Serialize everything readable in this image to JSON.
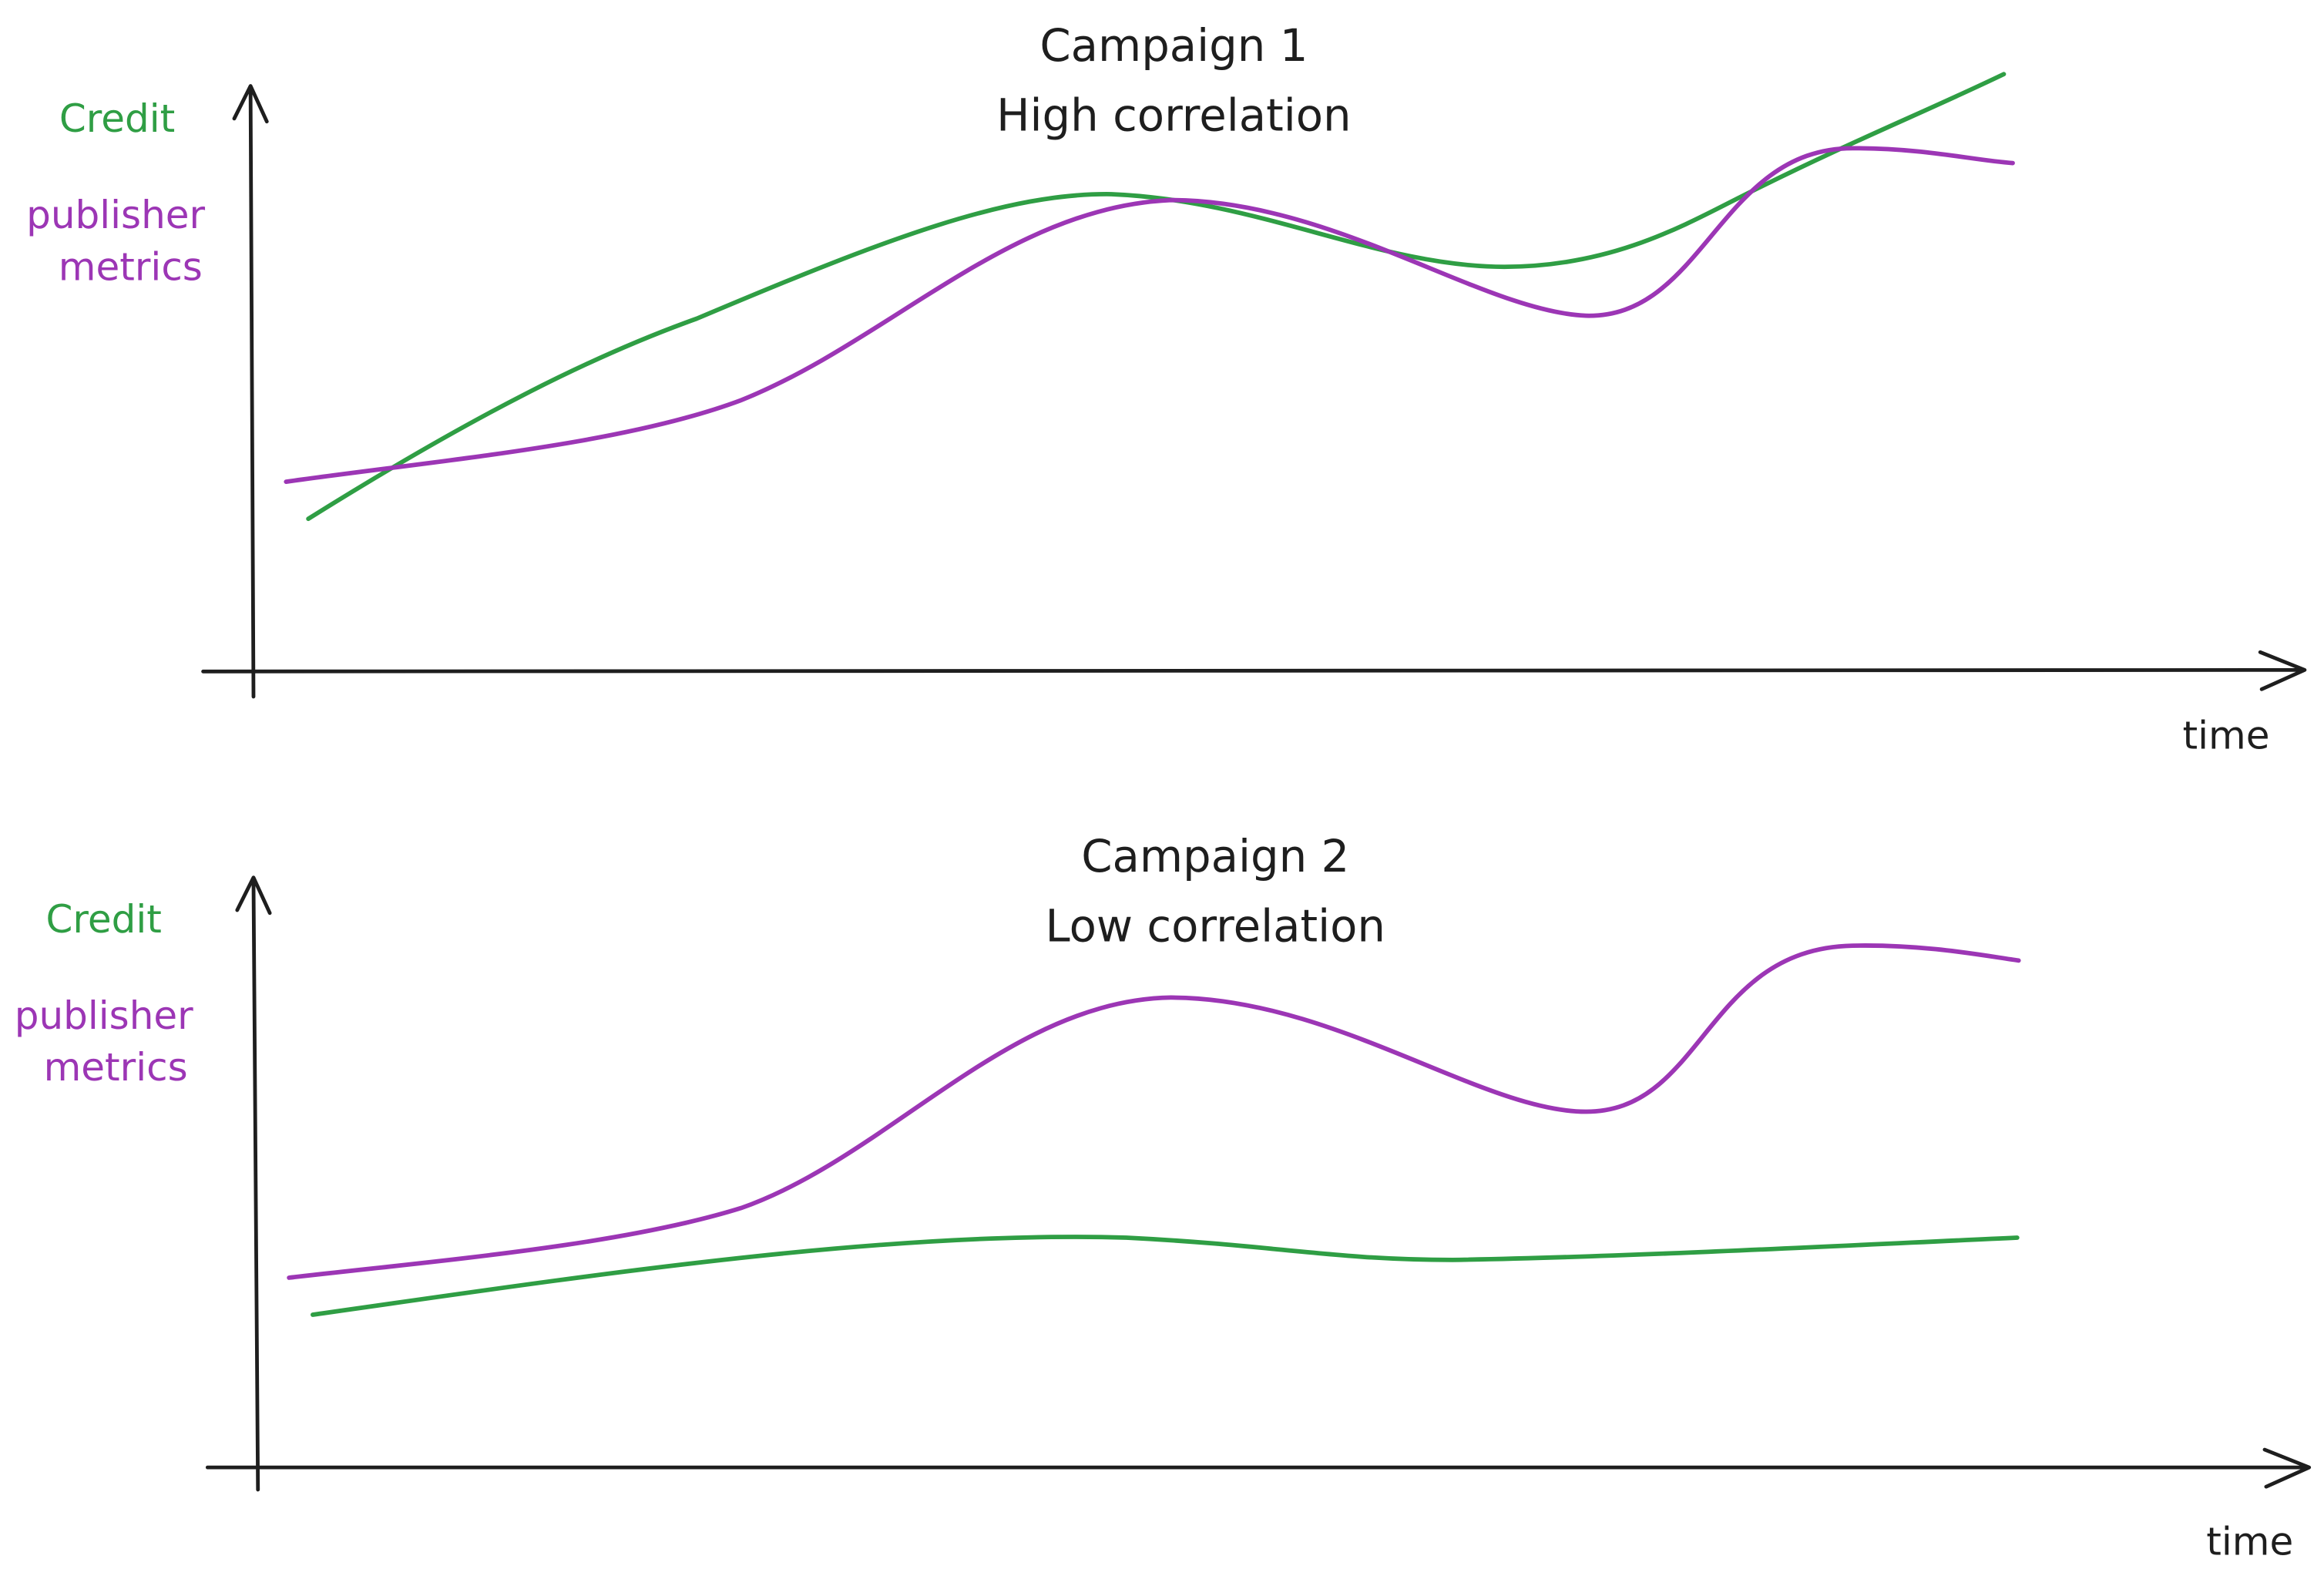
{
  "panels": [
    {
      "title": "Campaign 1",
      "subtitle": "High correlation",
      "credit_label": "Credit",
      "metrics_label": [
        "publisher",
        "metrics"
      ],
      "x_label": "time"
    },
    {
      "title": "Campaign 2",
      "subtitle": "Low correlation",
      "credit_label": "Credit",
      "metrics_label": [
        "publisher",
        "metrics"
      ],
      "x_label": "time"
    }
  ]
}
